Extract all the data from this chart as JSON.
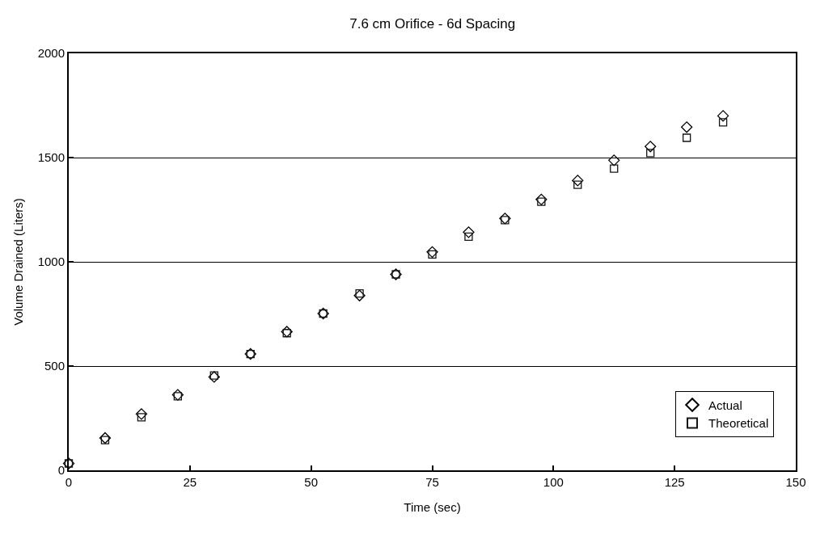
{
  "chart_data": {
    "type": "scatter",
    "title": "7.6 cm Orifice - 6d Spacing",
    "xlabel": "Time (sec)",
    "ylabel": "Volume Drained (Liters)",
    "x": [
      0,
      7.5,
      15,
      22.5,
      30,
      37.5,
      45,
      52.5,
      60,
      67.5,
      75,
      82.5,
      90,
      97.5,
      105,
      112.5,
      120,
      127.5,
      135
    ],
    "series": [
      {
        "name": "Actual",
        "color": "#000000",
        "marker": "diamond",
        "values": [
          33,
          155,
          270,
          362,
          448,
          558,
          665,
          752,
          838,
          940,
          1047,
          1142,
          1208,
          1299,
          1390,
          1487,
          1553,
          1646,
          1700
        ]
      },
      {
        "name": "Theoretical",
        "color": "#141414",
        "marker": "square",
        "values": [
          33,
          145,
          254,
          355,
          455,
          558,
          658,
          752,
          848,
          940,
          1035,
          1121,
          1200,
          1288,
          1370,
          1447,
          1522,
          1595,
          1669
        ]
      }
    ],
    "xlim": [
      0,
      150
    ],
    "xticks": [
      0,
      25,
      50,
      75,
      100,
      125,
      150
    ],
    "ylim": [
      0,
      2000
    ],
    "yticks": [
      0,
      500,
      1000,
      1500,
      2000
    ],
    "grid": "y",
    "legend": "bottom right"
  }
}
